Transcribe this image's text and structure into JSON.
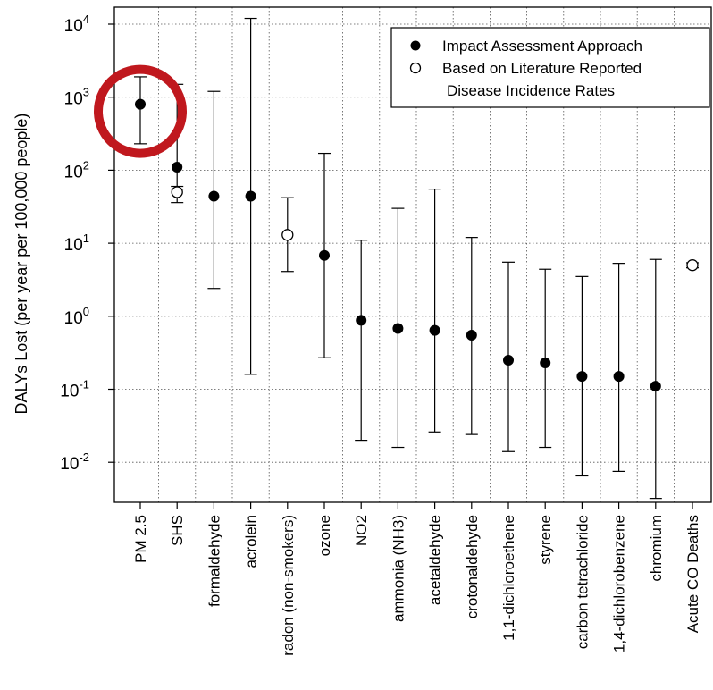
{
  "chart_data": {
    "type": "scatter",
    "title": "",
    "xlabel": "",
    "ylabel": "DALYs Lost (per year per 100,000 people)",
    "y_scale": "log",
    "ylim": [
      0.002,
      15000
    ],
    "y_ticks": [
      {
        "value": 0.01,
        "base": "10",
        "exp": "-2"
      },
      {
        "value": 0.1,
        "base": "10",
        "exp": "-1"
      },
      {
        "value": 1,
        "base": "10",
        "exp": "0"
      },
      {
        "value": 10,
        "base": "10",
        "exp": "1"
      },
      {
        "value": 100,
        "base": "10",
        "exp": "2"
      },
      {
        "value": 1000,
        "base": "10",
        "exp": "3"
      },
      {
        "value": 10000,
        "base": "10",
        "exp": "4"
      }
    ],
    "grid": true,
    "legend_position": "top-right",
    "categories": [
      "PM 2.5",
      "SHS",
      "formaldehyde",
      "acrolein",
      "radon (non-smokers)",
      "ozone",
      "NO2",
      "ammonia (NH3)",
      "acetaldehyde",
      "crotonaldehyde",
      "1,1-dichloroethene",
      "styrene",
      "carbon tetrachloride",
      "1,4-dichlorobenzene",
      "chromium",
      "Acute CO Deaths"
    ],
    "series": [
      {
        "name": "Impact Assessment Approach",
        "marker": "filled",
        "points": [
          {
            "category": "PM 2.5",
            "value": 800,
            "low": 230,
            "high": 1900
          },
          {
            "category": "SHS",
            "value": 110,
            "low": 55,
            "high": 1500
          },
          {
            "category": "formaldehyde",
            "value": 44,
            "low": 2.4,
            "high": 1200
          },
          {
            "category": "acrolein",
            "value": 44,
            "low": 0.16,
            "high": 12000
          },
          {
            "category": "ozone",
            "value": 6.8,
            "low": 0.27,
            "high": 170
          },
          {
            "category": "NO2",
            "value": 0.88,
            "low": 0.02,
            "high": 11
          },
          {
            "category": "ammonia (NH3)",
            "value": 0.68,
            "low": 0.016,
            "high": 30
          },
          {
            "category": "acetaldehyde",
            "value": 0.64,
            "low": 0.026,
            "high": 55
          },
          {
            "category": "crotonaldehyde",
            "value": 0.55,
            "low": 0.024,
            "high": 12
          },
          {
            "category": "1,1-dichloroethene",
            "value": 0.25,
            "low": 0.014,
            "high": 5.5
          },
          {
            "category": "styrene",
            "value": 0.23,
            "low": 0.016,
            "high": 4.4
          },
          {
            "category": "carbon tetrachloride",
            "value": 0.15,
            "low": 0.0065,
            "high": 3.5
          },
          {
            "category": "1,4-dichlorobenzene",
            "value": 0.15,
            "low": 0.0075,
            "high": 5.3
          },
          {
            "category": "chromium",
            "value": 0.11,
            "low": 0.0032,
            "high": 6.0
          }
        ]
      },
      {
        "name": "Based on Literature Reported Disease Incidence Rates",
        "marker": "open",
        "points": [
          {
            "category": "SHS",
            "value": 50,
            "low": 36,
            "high": 60
          },
          {
            "category": "radon (non-smokers)",
            "value": 13,
            "low": 4.1,
            "high": 42
          },
          {
            "category": "Acute CO Deaths",
            "value": 5.0,
            "low": 4.6,
            "high": 5.4
          }
        ]
      }
    ],
    "legend": {
      "entries": [
        {
          "marker": "filled",
          "lines": [
            "Impact Assessment Approach"
          ]
        },
        {
          "marker": "open",
          "lines": [
            "Based on Literature Reported",
            "Disease Incidence Rates"
          ]
        }
      ]
    },
    "annotation": {
      "type": "circle",
      "target": "PM 2.5",
      "color": "#c0181e"
    }
  }
}
